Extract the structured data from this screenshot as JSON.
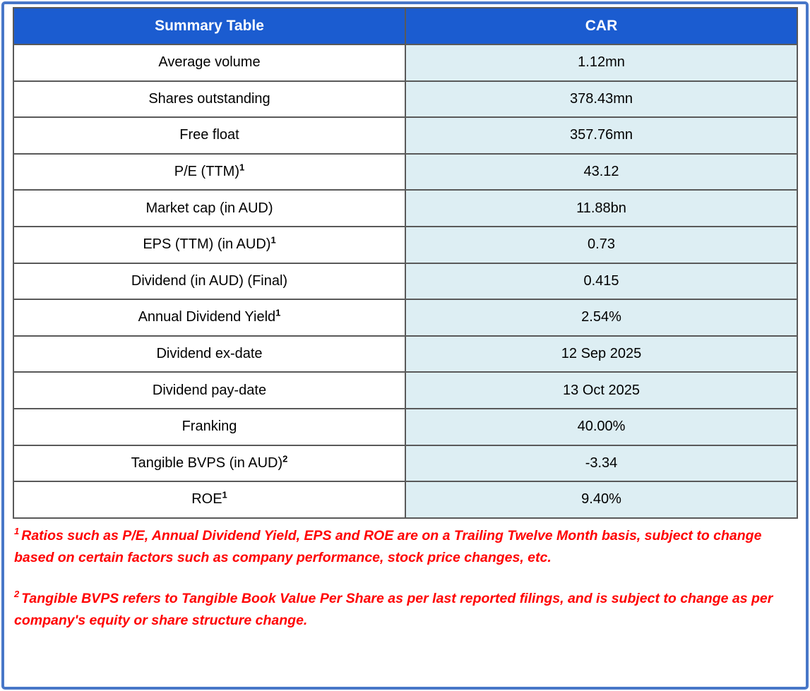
{
  "table": {
    "header": {
      "left": "Summary Table",
      "right": "CAR"
    },
    "rows": [
      {
        "label": "Average volume",
        "sup": "",
        "value": "1.12mn"
      },
      {
        "label": "Shares outstanding",
        "sup": "",
        "value": "378.43mn"
      },
      {
        "label": "Free float",
        "sup": "",
        "value": "357.76mn"
      },
      {
        "label": "P/E (TTM)",
        "sup": "1",
        "value": "43.12"
      },
      {
        "label": "Market cap (in AUD)",
        "sup": "",
        "value": "11.88bn"
      },
      {
        "label": "EPS (TTM) (in AUD)",
        "sup": "1",
        "value": "0.73"
      },
      {
        "label": "Dividend (in AUD) (Final)",
        "sup": "",
        "value": "0.415"
      },
      {
        "label": "Annual Dividend Yield",
        "sup": "1",
        "value": "2.54%"
      },
      {
        "label": "Dividend ex-date",
        "sup": "",
        "value": "12 Sep 2025"
      },
      {
        "label": "Dividend pay-date",
        "sup": "",
        "value": "13 Oct 2025"
      },
      {
        "label": "Franking",
        "sup": "",
        "value": "40.00%"
      },
      {
        "label": "Tangible BVPS (in AUD)",
        "sup": "2",
        "value": "-3.34"
      },
      {
        "label": "ROE",
        "sup": "1",
        "value": "9.40%"
      }
    ]
  },
  "footnotes": [
    {
      "sup": "1",
      "text": "Ratios such as P/E, Annual Dividend Yield, EPS and ROE are on a Trailing Twelve Month basis, subject to change based on certain factors such as company performance, stock price changes, etc."
    },
    {
      "sup": "2",
      "text": "Tangible BVPS refers to Tangible Book Value Per Share as per last reported filings, and is subject to change as per company's equity or share structure change."
    }
  ],
  "colors": {
    "header_bg": "#1B5CD0",
    "header_text": "#FFFFFF",
    "value_cell_bg": "#DDEEF3",
    "label_cell_bg": "#FFFFFF",
    "cell_border": "#595959",
    "outer_frame": "#4877C8",
    "footnote_text": "#FF0000"
  }
}
